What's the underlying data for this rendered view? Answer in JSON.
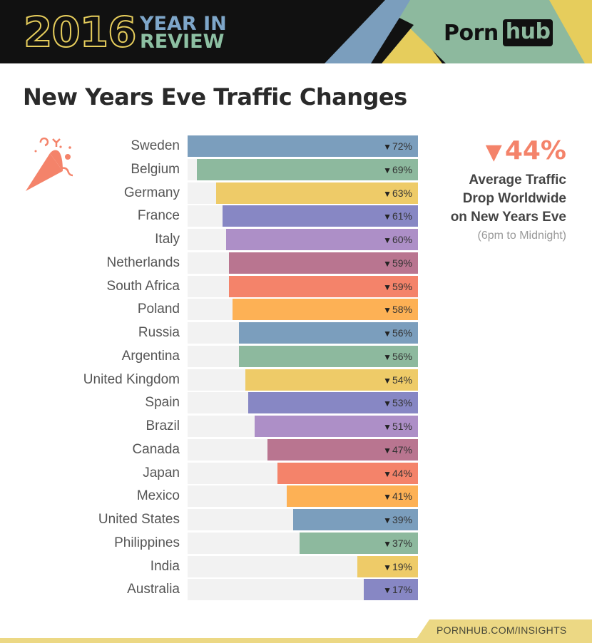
{
  "header": {
    "year": "2016",
    "subtitle_line1": "YEAR IN",
    "subtitle_line2": "REVIEW",
    "logo_part1": "Porn",
    "logo_part2": "hub",
    "colors": {
      "background": "#111111",
      "year": "#e6cd5c",
      "blue": "#7ea6c9",
      "green": "#8dc0a3",
      "yellow": "#e6cd5c"
    }
  },
  "page_title": "New Years Eve Traffic Changes",
  "callout": {
    "value": "44%",
    "arrow": "▼",
    "line1": "Average Traffic",
    "line2": "Drop Worldwide",
    "line3": "on New Years Eve",
    "note": "(6pm to Midnight)",
    "color": "#f4836a"
  },
  "footer": {
    "link_text": "PORNHUB.COM/INSIGHTS"
  },
  "chart_data": {
    "type": "bar",
    "orientation": "horizontal",
    "title": "New Years Eve Traffic Changes",
    "xlabel": "",
    "ylabel": "",
    "value_unit": "% traffic drop",
    "grid": false,
    "legend": null,
    "categories": [
      "Sweden",
      "Belgium",
      "Germany",
      "France",
      "Italy",
      "Netherlands",
      "South Africa",
      "Poland",
      "Russia",
      "Argentina",
      "United Kingdom",
      "Spain",
      "Brazil",
      "Canada",
      "Japan",
      "Mexico",
      "United States",
      "Philippines",
      "India",
      "Australia"
    ],
    "values": [
      72,
      69,
      63,
      61,
      60,
      59,
      59,
      58,
      56,
      56,
      54,
      53,
      51,
      47,
      44,
      41,
      39,
      37,
      19,
      17
    ],
    "labels": [
      "▼72%",
      "▼69%",
      "▼63%",
      "▼61%",
      "▼60%",
      "▼59%",
      "▼59%",
      "▼58%",
      "▼56%",
      "▼56%",
      "▼54%",
      "▼53%",
      "▼51%",
      "▼47%",
      "▼44%",
      "▼41%",
      "▼39%",
      "▼37%",
      "▼19%",
      "▼17%"
    ],
    "colors": [
      "#7b9ebd",
      "#8db99e",
      "#eecb68",
      "#8787c4",
      "#ad8fc7",
      "#b97590",
      "#f4836a",
      "#fdb155",
      "#7b9ebd",
      "#8db99e",
      "#eecb68",
      "#8787c4",
      "#ad8fc7",
      "#b97590",
      "#f4836a",
      "#fdb155",
      "#7b9ebd",
      "#8db99e",
      "#eecb68",
      "#8787c4"
    ],
    "annotations": [
      "▼44% Average Traffic Drop Worldwide on New Years Eve (6pm to Midnight)"
    ],
    "xlim": [
      0,
      72
    ]
  }
}
